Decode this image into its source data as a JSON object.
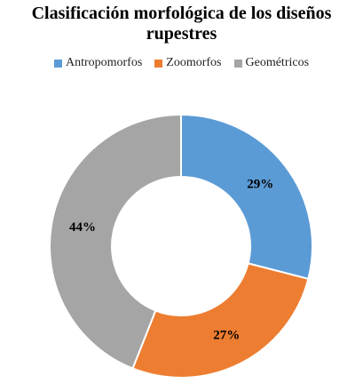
{
  "chart_data": {
    "type": "pie",
    "donut": true,
    "title": "Clasificación morfológica de los diseños rupestres",
    "legend_position": "top",
    "categories": [
      "Antropomorfos",
      "Zoomorfos",
      "Geométricos"
    ],
    "values": [
      29,
      27,
      44
    ],
    "data_labels": [
      "29%",
      "27%",
      "44%"
    ],
    "colors": [
      "#5B9BD5",
      "#ED7D31",
      "#A5A5A5"
    ]
  }
}
